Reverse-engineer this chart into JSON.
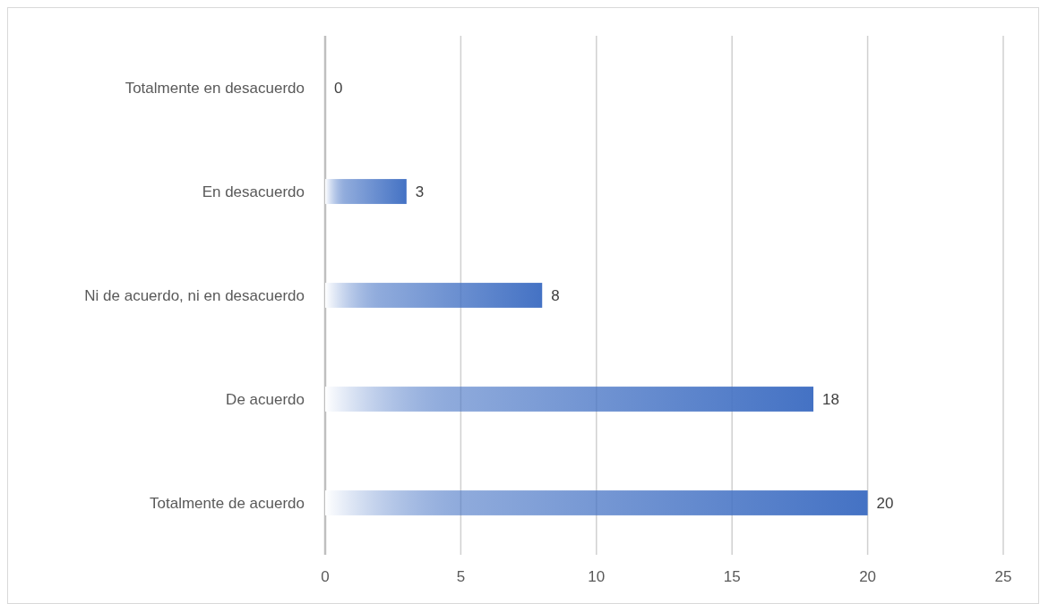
{
  "chart_data": {
    "type": "bar",
    "orientation": "horizontal",
    "categories": [
      "Totalmente en desacuerdo",
      "En desacuerdo",
      "Ni de acuerdo, ni en desacuerdo",
      "De acuerdo",
      "Totalmente de acuerdo"
    ],
    "values": [
      0,
      3,
      8,
      18,
      20
    ],
    "color": "#4472c4",
    "xlim": [
      0,
      25
    ],
    "xticks": [
      0,
      5,
      10,
      15,
      20,
      25
    ],
    "grid": "x",
    "data_labels": true
  }
}
